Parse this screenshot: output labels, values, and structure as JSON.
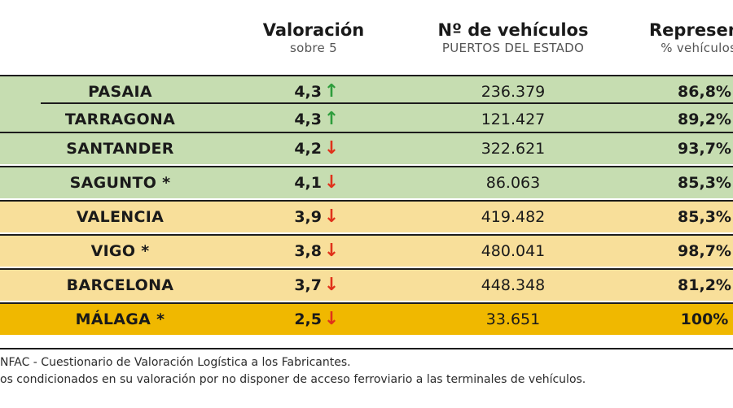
{
  "header": {
    "valoracion_title": "Valoración",
    "valoracion_sub": "sobre 5",
    "vehiculos_title": "Nº de vehículos",
    "vehiculos_sub": "PUERTOS DEL ESTADO",
    "repr_title": "Representa",
    "repr_sub": "% vehículos a"
  },
  "rows": [
    {
      "port": "PASAIA",
      "score": "4,3",
      "arrow": "↑",
      "trend": "up",
      "vehicles": "236.379",
      "share": "86,8%",
      "band": "green"
    },
    {
      "port": "TARRAGONA",
      "score": "4,3",
      "arrow": "↑",
      "trend": "up",
      "vehicles": "121.427",
      "share": "89,2%",
      "band": "green"
    },
    {
      "port": "SANTANDER",
      "score": "4,2",
      "arrow": "↓",
      "trend": "down",
      "vehicles": "322.621",
      "share": "93,7%",
      "band": "green"
    },
    {
      "port": "SAGUNTO *",
      "score": "4,1",
      "arrow": "↓",
      "trend": "down",
      "vehicles": "86.063",
      "share": "85,3%",
      "band": "green"
    },
    {
      "port": "VALENCIA",
      "score": "3,9",
      "arrow": "↓",
      "trend": "down",
      "vehicles": "419.482",
      "share": "85,3%",
      "band": "yellow"
    },
    {
      "port": "VIGO *",
      "score": "3,8",
      "arrow": "↓",
      "trend": "down",
      "vehicles": "480.041",
      "share": "98,7%",
      "band": "yellow"
    },
    {
      "port": "BARCELONA",
      "score": "3,7",
      "arrow": "↓",
      "trend": "down",
      "vehicles": "448.348",
      "share": "81,2%",
      "band": "yellow"
    },
    {
      "port": "MÁLAGA *",
      "score": "2,5",
      "arrow": "↓",
      "trend": "down",
      "vehicles": "33.651",
      "share": "100%",
      "band": "gold"
    }
  ],
  "footer": {
    "line1": "NFAC - Cuestionario de Valoración Logística a los Fabricantes.",
    "line2": "os condicionados en su valoración por no disponer de acceso ferroviario a las terminales de vehículos."
  },
  "colors": {
    "green": "#c6ddb1",
    "yellow": "#f8df9a",
    "gold": "#f0b800",
    "up": "#2e9d3c",
    "down": "#e0321b"
  }
}
